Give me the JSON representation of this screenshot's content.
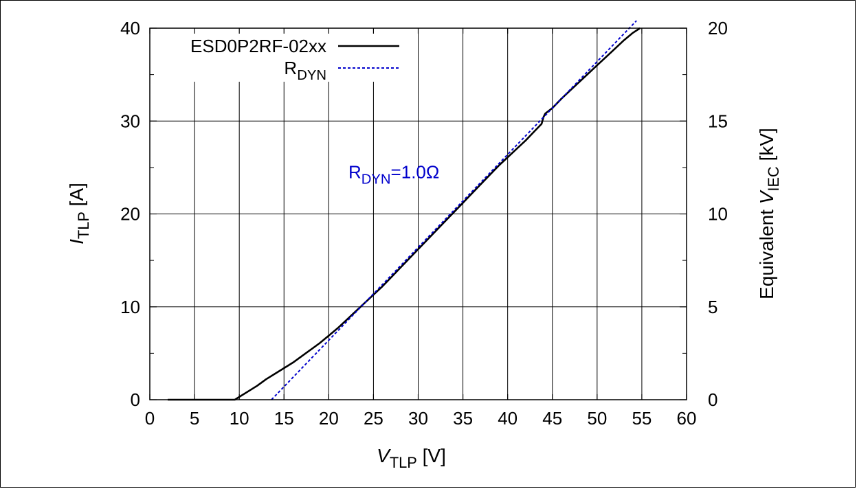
{
  "chart_data": {
    "type": "line",
    "x_axis": {
      "label_main": "V",
      "label_sub": "TLP",
      "label_unit": "[V]",
      "min": 0,
      "max": 60,
      "ticks": [
        "0",
        "5",
        "10",
        "15",
        "20",
        "25",
        "30",
        "35",
        "40",
        "45",
        "50",
        "55",
        "60"
      ]
    },
    "y_axis_left": {
      "label_main": "I",
      "label_sub": "TLP",
      "label_unit": "[A]",
      "min": 0,
      "max": 40,
      "ticks": [
        "0",
        "10",
        "20",
        "30",
        "40"
      ]
    },
    "y_axis_right": {
      "label_prefix": "Equivalent",
      "label_main": "V",
      "label_sub": "IEC",
      "label_unit": "[kV]",
      "min": 0,
      "max": 20,
      "ticks": [
        "0",
        "5",
        "10",
        "15",
        "20"
      ]
    },
    "grid": true,
    "legend": {
      "placement": "top-left"
    },
    "series": [
      {
        "name": "ESD0P2RF-02xx",
        "color": "#000000",
        "style": "solid",
        "x": [
          2,
          9.5,
          10,
          11,
          12,
          13,
          14,
          15,
          16,
          17,
          18,
          19,
          20,
          21,
          22,
          23,
          24,
          25,
          26,
          27,
          28,
          29,
          30,
          31,
          32,
          33,
          34,
          35,
          36,
          37,
          38,
          39,
          40,
          41,
          42,
          43,
          43.8,
          44,
          44.2,
          45,
          46,
          47,
          48,
          49,
          50,
          51,
          52,
          53,
          54,
          54.8
        ],
        "y": [
          0,
          0,
          0.3,
          0.9,
          1.5,
          2.2,
          2.8,
          3.4,
          4.0,
          4.7,
          5.4,
          6.1,
          6.9,
          7.7,
          8.6,
          9.5,
          10.4,
          11.3,
          12.2,
          13.2,
          14.2,
          15.2,
          16.2,
          17.2,
          18.2,
          19.2,
          20.2,
          21.2,
          22.2,
          23.2,
          24.2,
          25.2,
          26.1,
          27.0,
          27.9,
          28.9,
          29.7,
          30.4,
          30.8,
          31.4,
          32.4,
          33.3,
          34.2,
          35.1,
          36.0,
          36.9,
          37.8,
          38.7,
          39.5,
          40.0
        ]
      },
      {
        "name": "RDYN",
        "color": "#0000cc",
        "style": "dashed",
        "x": [
          13.6,
          54.4
        ],
        "y": [
          0,
          40.8
        ]
      }
    ],
    "legend_entries": [
      {
        "text": "ESD0P2RF-02xx",
        "sub": ""
      },
      {
        "text": "R",
        "sub": "DYN"
      }
    ],
    "annotations": [
      {
        "text": "R",
        "sub": "DYN",
        "suffix": "=1.0Ω",
        "x": 22.2,
        "y": 24.5,
        "color": "#0000cc"
      }
    ]
  }
}
